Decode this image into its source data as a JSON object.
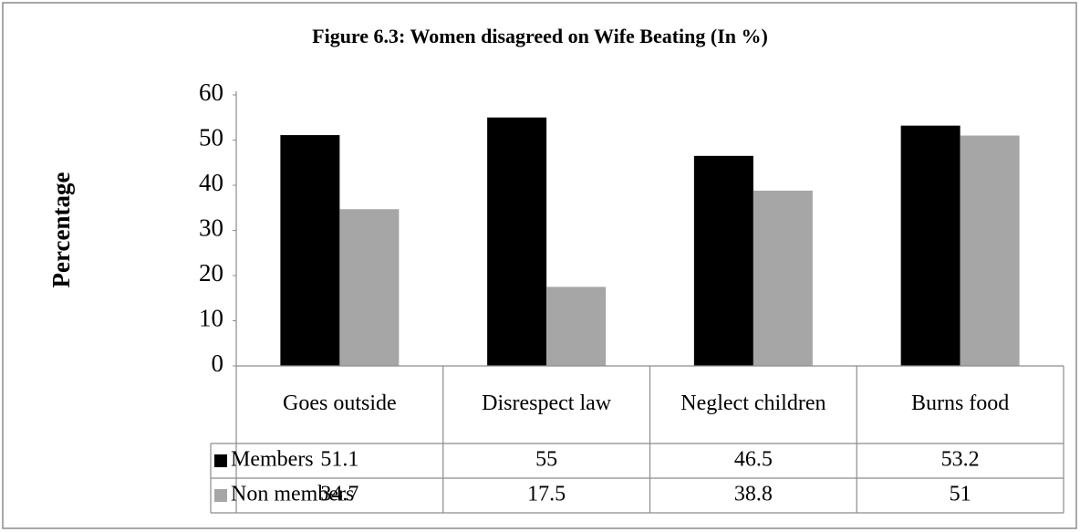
{
  "chart_data": {
    "type": "bar",
    "title": "Figure 6.3: Women disagreed on Wife Beating (In %)",
    "y_label": "Percentage",
    "categories": [
      "Goes outside",
      "Disrespect law",
      "Neglect children",
      "Burns food"
    ],
    "series": [
      {
        "name": "Members",
        "color": "#000000",
        "values": [
          51.1,
          55,
          46.5,
          53.2
        ]
      },
      {
        "name": "Non members",
        "color": "#a6a6a6",
        "values": [
          34.7,
          17.5,
          38.8,
          51
        ]
      }
    ],
    "ylim": [
      0,
      60
    ],
    "yticks": [
      0,
      10,
      20,
      30,
      40,
      50,
      60
    ],
    "grid": false,
    "data_table": true
  }
}
